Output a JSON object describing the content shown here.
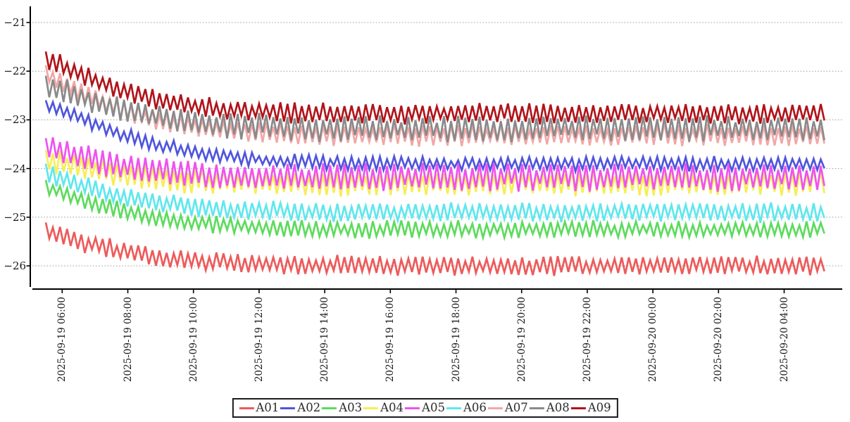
{
  "chart_data": {
    "type": "line",
    "title": "",
    "xlabel": "",
    "ylabel": "",
    "background_color": "#ffffff",
    "axis_color": "#000000",
    "text_color": "#1a1a1a",
    "grid": {
      "horizontal": true,
      "style": "dashed",
      "color": "#999999"
    },
    "legend_position": "bottom-center",
    "x_axis": {
      "start_time": "2025-09-19 05:30",
      "end_time": "2025-09-20 05:15",
      "tick_interval_hours": 2,
      "tick_labels": [
        "2025-09-19 06:00",
        "2025-09-19 08:00",
        "2025-09-19 10:00",
        "2025-09-19 12:00",
        "2025-09-19 14:00",
        "2025-09-19 16:00",
        "2025-09-19 18:00",
        "2025-09-19 20:00",
        "2025-09-19 22:00",
        "2025-09-20 00:00",
        "2025-09-20 02:00",
        "2025-09-20 04:00"
      ],
      "tick_hours_from_start": [
        0.5,
        2.5,
        4.5,
        6.5,
        8.5,
        10.5,
        12.5,
        14.5,
        16.5,
        18.5,
        20.5,
        22.5
      ]
    },
    "y_axis": {
      "tick_labels": [
        "−21",
        "−22",
        "−23",
        "−24",
        "−25",
        "−26"
      ],
      "tick_values": [
        -21,
        -22,
        -23,
        -24,
        -25,
        -26
      ],
      "range": [
        -26.5,
        -20.67
      ]
    },
    "duration_hours": 23.75,
    "center_sample_hours": [
      0,
      1,
      2,
      3,
      4,
      5,
      6,
      7,
      8,
      9,
      10,
      11,
      12,
      13,
      14,
      15,
      16,
      17,
      18,
      19,
      20,
      21,
      22,
      23,
      24
    ],
    "series": [
      {
        "name": "A01",
        "color": "#ee5a5a",
        "oscillation_amplitude": 0.15,
        "oscillation_period_minutes": 13,
        "center_values": [
          -25.28,
          -25.5,
          -25.66,
          -25.78,
          -25.86,
          -25.91,
          -25.95,
          -25.97,
          -25.98,
          -25.99,
          -26.0,
          -26.0,
          -26.0,
          -26.0,
          -26.0,
          -26.0,
          -26.0,
          -26.0,
          -26.0,
          -26.0,
          -26.0,
          -26.0,
          -26.0,
          -26.0,
          -26.0
        ]
      },
      {
        "name": "A02",
        "color": "#4f55dc",
        "oscillation_amplitude": 0.11,
        "oscillation_period_minutes": 13,
        "center_values": [
          -22.7,
          -22.95,
          -23.22,
          -23.45,
          -23.6,
          -23.71,
          -23.79,
          -23.84,
          -23.87,
          -23.89,
          -23.9,
          -23.9,
          -23.9,
          -23.9,
          -23.9,
          -23.9,
          -23.9,
          -23.9,
          -23.9,
          -23.9,
          -23.9,
          -23.9,
          -23.9,
          -23.9,
          -23.9
        ]
      },
      {
        "name": "A03",
        "color": "#5ddb5d",
        "oscillation_amplitude": 0.13,
        "oscillation_period_minutes": 13,
        "center_values": [
          -24.37,
          -24.62,
          -24.82,
          -24.97,
          -25.07,
          -25.14,
          -25.19,
          -25.22,
          -25.24,
          -25.25,
          -25.25,
          -25.25,
          -25.25,
          -25.25,
          -25.25,
          -25.25,
          -25.25,
          -25.25,
          -25.25,
          -25.25,
          -25.25,
          -25.25,
          -25.25,
          -25.25,
          -25.25
        ]
      },
      {
        "name": "A04",
        "color": "#f6ee55",
        "oscillation_amplitude": 0.2,
        "oscillation_period_minutes": 13,
        "center_values": [
          -23.8,
          -23.97,
          -24.1,
          -24.18,
          -24.23,
          -24.26,
          -24.28,
          -24.29,
          -24.3,
          -24.3,
          -24.3,
          -24.3,
          -24.3,
          -24.3,
          -24.3,
          -24.3,
          -24.3,
          -24.3,
          -24.3,
          -24.3,
          -24.3,
          -24.3,
          -24.3,
          -24.3,
          -24.3
        ]
      },
      {
        "name": "A05",
        "color": "#ef52ef",
        "oscillation_amplitude": 0.22,
        "oscillation_period_minutes": 13,
        "center_values": [
          -23.55,
          -23.75,
          -23.92,
          -24.03,
          -24.1,
          -24.14,
          -24.16,
          -24.17,
          -24.18,
          -24.18,
          -24.18,
          -24.18,
          -24.18,
          -24.18,
          -24.18,
          -24.18,
          -24.18,
          -24.18,
          -24.18,
          -24.18,
          -24.18,
          -24.18,
          -24.18,
          -24.18,
          -24.18
        ]
      },
      {
        "name": "A06",
        "color": "#5fe7ee",
        "oscillation_amplitude": 0.15,
        "oscillation_period_minutes": 13,
        "center_values": [
          -24.08,
          -24.32,
          -24.52,
          -24.66,
          -24.76,
          -24.82,
          -24.86,
          -24.88,
          -24.89,
          -24.9,
          -24.9,
          -24.9,
          -24.9,
          -24.9,
          -24.9,
          -24.9,
          -24.9,
          -24.9,
          -24.9,
          -24.9,
          -24.9,
          -24.9,
          -24.9,
          -24.9,
          -24.9
        ]
      },
      {
        "name": "A07",
        "color": "#f2a7a7",
        "oscillation_amplitude": 0.17,
        "oscillation_period_minutes": 13,
        "center_values": [
          -22.08,
          -22.42,
          -22.72,
          -22.95,
          -23.1,
          -23.19,
          -23.25,
          -23.28,
          -23.3,
          -23.31,
          -23.31,
          -23.31,
          -23.31,
          -23.31,
          -23.31,
          -23.31,
          -23.31,
          -23.31,
          -23.31,
          -23.31,
          -23.31,
          -23.31,
          -23.31,
          -23.31,
          -23.31
        ]
      },
      {
        "name": "A08",
        "color": "#8a8a8a",
        "oscillation_amplitude": 0.2,
        "oscillation_period_minutes": 13,
        "center_values": [
          -22.28,
          -22.52,
          -22.74,
          -22.9,
          -23.01,
          -23.08,
          -23.13,
          -23.15,
          -23.17,
          -23.18,
          -23.18,
          -23.18,
          -23.18,
          -23.18,
          -23.18,
          -23.18,
          -23.18,
          -23.18,
          -23.18,
          -23.18,
          -23.18,
          -23.18,
          -23.18,
          -23.18,
          -23.18
        ]
      },
      {
        "name": "A09",
        "color": "#b0141a",
        "oscillation_amplitude": 0.16,
        "oscillation_period_minutes": 13,
        "center_values": [
          -21.75,
          -22.05,
          -22.32,
          -22.52,
          -22.66,
          -22.75,
          -22.81,
          -22.84,
          -22.86,
          -22.87,
          -22.87,
          -22.87,
          -22.87,
          -22.87,
          -22.87,
          -22.87,
          -22.87,
          -22.87,
          -22.87,
          -22.87,
          -22.87,
          -22.87,
          -22.87,
          -22.87,
          -22.87
        ]
      }
    ]
  }
}
